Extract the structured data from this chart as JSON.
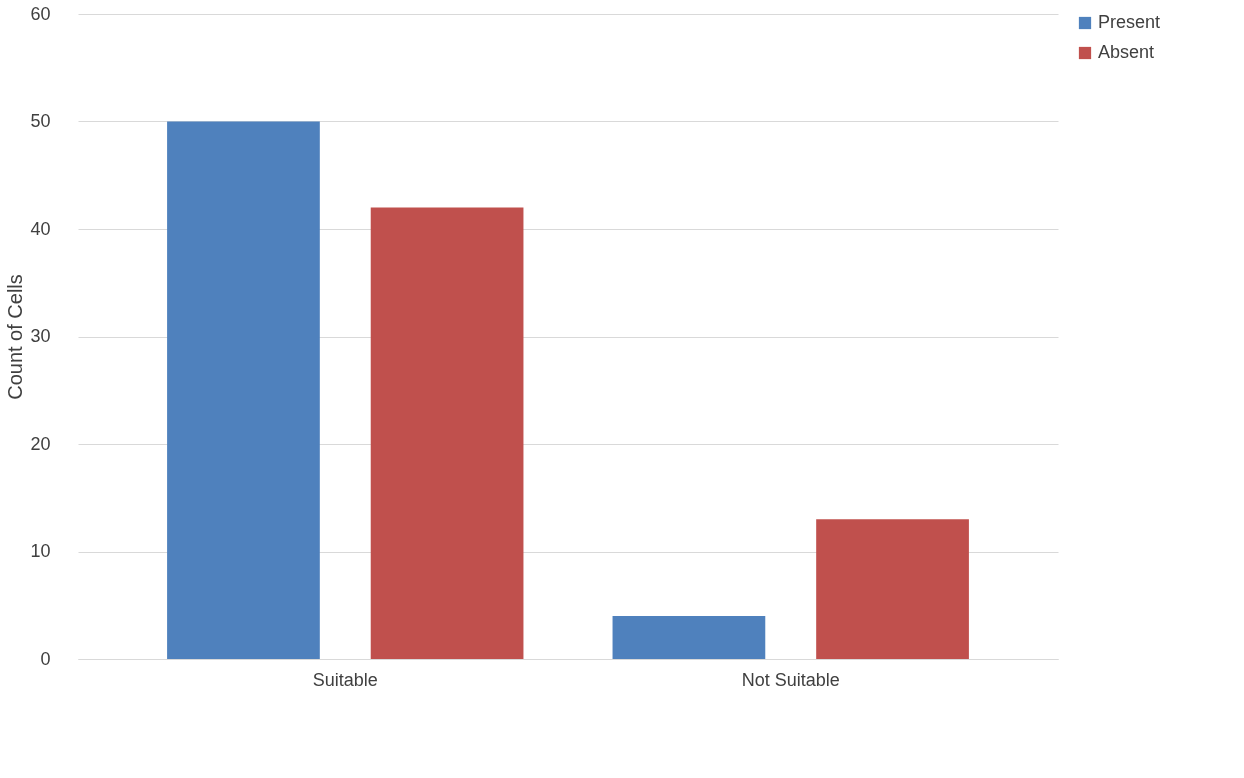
{
  "chart_data": {
    "type": "bar",
    "ylabel": "Count of Cells",
    "categories": [
      "Suitable",
      "Not Suitable"
    ],
    "series": [
      {
        "name": "Present",
        "color": "#4f81bd",
        "values": [
          50,
          4
        ]
      },
      {
        "name": "Absent",
        "color": "#c0504d",
        "values": [
          42,
          13
        ]
      }
    ],
    "ylim": [
      0,
      60
    ],
    "yticks": [
      0,
      10,
      20,
      30,
      40,
      50,
      60
    ],
    "grid": "y",
    "legend": "right"
  }
}
